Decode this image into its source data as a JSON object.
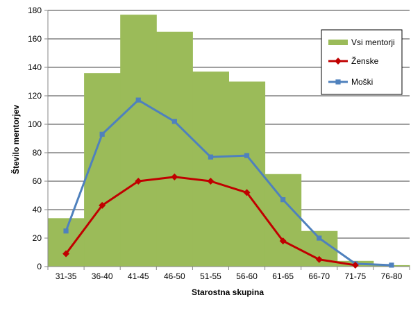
{
  "chart_data": {
    "type": "bar+line",
    "xlabel": "Starostna skupina",
    "ylabel": "Število mentorjev",
    "ylim": [
      0,
      180
    ],
    "yticks": [
      0,
      20,
      40,
      60,
      80,
      100,
      120,
      140,
      160,
      180
    ],
    "grid": true,
    "legend_position": "top-right",
    "categories": [
      "31-35",
      "36-40",
      "41-45",
      "46-50",
      "51-55",
      "56-60",
      "61-65",
      "66-70",
      "71-75",
      "76-80"
    ],
    "series": [
      {
        "name": "Vsi mentorji",
        "kind": "bar",
        "color": "#9bbb59",
        "values": [
          34,
          136,
          177,
          165,
          137,
          130,
          65,
          25,
          4,
          1
        ]
      },
      {
        "name": "Ženske",
        "kind": "line",
        "color": "#c00000",
        "marker": "diamond",
        "values": [
          9,
          43,
          60,
          63,
          60,
          52,
          18,
          5,
          1,
          null
        ]
      },
      {
        "name": "Moški",
        "kind": "line",
        "color": "#4f81bd",
        "marker": "square",
        "values": [
          25,
          93,
          117,
          102,
          77,
          78,
          47,
          20,
          2,
          1
        ]
      }
    ]
  }
}
